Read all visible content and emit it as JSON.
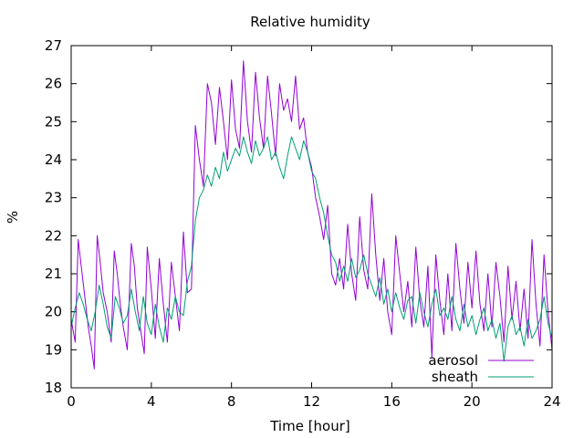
{
  "chart_data": {
    "type": "line",
    "title": "Relative humidity",
    "xlabel": "Time [hour]",
    "ylabel": "%",
    "xlim": [
      0,
      24
    ],
    "ylim": [
      18,
      27
    ],
    "xticks": [
      0,
      4,
      8,
      12,
      16,
      20,
      24
    ],
    "yticks": [
      18,
      19,
      20,
      21,
      22,
      23,
      24,
      25,
      26,
      27
    ],
    "grid": false,
    "legend": "bottom-right",
    "series": [
      {
        "name": "aerosol",
        "color": "#9400d3",
        "x": [
          0.0,
          0.2,
          0.35,
          0.5,
          0.7,
          0.85,
          1.0,
          1.15,
          1.3,
          1.45,
          1.6,
          1.8,
          2.0,
          2.15,
          2.3,
          2.45,
          2.6,
          2.8,
          3.0,
          3.15,
          3.3,
          3.5,
          3.65,
          3.8,
          4.0,
          4.2,
          4.4,
          4.6,
          4.8,
          5.0,
          5.2,
          5.4,
          5.6,
          5.8,
          6.0,
          6.2,
          6.4,
          6.6,
          6.8,
          7.0,
          7.2,
          7.4,
          7.6,
          7.8,
          8.0,
          8.2,
          8.4,
          8.6,
          8.8,
          9.0,
          9.2,
          9.4,
          9.6,
          9.8,
          10.0,
          10.2,
          10.4,
          10.6,
          10.8,
          11.0,
          11.2,
          11.4,
          11.6,
          11.8,
          12.0,
          12.2,
          12.4,
          12.6,
          12.8,
          13.0,
          13.2,
          13.4,
          13.6,
          13.8,
          14.0,
          14.2,
          14.4,
          14.6,
          14.8,
          15.0,
          15.2,
          15.4,
          15.6,
          15.8,
          16.0,
          16.2,
          16.4,
          16.6,
          16.8,
          17.0,
          17.2,
          17.4,
          17.6,
          17.8,
          18.0,
          18.2,
          18.4,
          18.6,
          18.8,
          19.0,
          19.2,
          19.4,
          19.6,
          19.8,
          20.0,
          20.2,
          20.4,
          20.6,
          20.8,
          21.0,
          21.2,
          21.4,
          21.6,
          21.8,
          22.0,
          22.2,
          22.4,
          22.6,
          22.8,
          23.0,
          23.2,
          23.4,
          23.6,
          23.8,
          24.0
        ],
        "y": [
          19.8,
          19.2,
          21.9,
          21.2,
          20.3,
          19.6,
          19.1,
          18.5,
          22.0,
          21.3,
          20.5,
          20.0,
          19.2,
          21.6,
          21.0,
          20.2,
          19.6,
          19.0,
          21.8,
          21.2,
          20.1,
          19.4,
          18.9,
          21.7,
          20.6,
          19.3,
          21.4,
          20.2,
          19.2,
          21.3,
          20.4,
          19.5,
          22.1,
          20.5,
          20.6,
          24.9,
          24.0,
          23.3,
          26.0,
          25.5,
          24.4,
          25.9,
          25.0,
          24.0,
          26.1,
          24.8,
          24.3,
          26.6,
          25.0,
          24.2,
          26.3,
          25.1,
          24.3,
          26.2,
          25.2,
          24.1,
          26.0,
          25.3,
          25.6,
          25.0,
          26.2,
          24.8,
          25.1,
          24.2,
          23.8,
          23.0,
          22.5,
          21.9,
          22.8,
          21.0,
          20.7,
          21.4,
          20.6,
          22.3,
          21.0,
          20.3,
          22.5,
          21.1,
          20.6,
          23.1,
          21.5,
          20.3,
          21.4,
          20.0,
          19.4,
          22.0,
          21.0,
          20.0,
          20.8,
          19.6,
          21.7,
          20.3,
          19.6,
          21.2,
          18.8,
          21.5,
          20.3,
          19.4,
          21.0,
          19.5,
          21.8,
          20.6,
          19.7,
          21.3,
          20.1,
          21.6,
          20.2,
          19.5,
          21.0,
          19.6,
          21.3,
          20.4,
          19.2,
          21.2,
          19.8,
          20.8,
          19.5,
          20.6,
          19.3,
          21.9,
          20.2,
          19.1,
          21.5,
          20.0,
          19.0
        ]
      },
      {
        "name": "sheath",
        "color": "#009e73",
        "x": [
          0.0,
          0.2,
          0.4,
          0.6,
          0.8,
          1.0,
          1.2,
          1.4,
          1.6,
          1.8,
          2.0,
          2.2,
          2.4,
          2.6,
          2.8,
          3.0,
          3.2,
          3.4,
          3.6,
          3.8,
          4.0,
          4.2,
          4.4,
          4.6,
          4.8,
          5.0,
          5.2,
          5.4,
          5.6,
          5.8,
          6.0,
          6.2,
          6.4,
          6.6,
          6.8,
          7.0,
          7.2,
          7.4,
          7.6,
          7.8,
          8.0,
          8.2,
          8.4,
          8.6,
          8.8,
          9.0,
          9.2,
          9.4,
          9.6,
          9.8,
          10.0,
          10.2,
          10.4,
          10.6,
          10.8,
          11.0,
          11.2,
          11.4,
          11.6,
          11.8,
          12.0,
          12.2,
          12.4,
          12.6,
          12.8,
          13.0,
          13.2,
          13.4,
          13.6,
          13.8,
          14.0,
          14.2,
          14.4,
          14.6,
          14.8,
          15.0,
          15.2,
          15.4,
          15.6,
          15.8,
          16.0,
          16.2,
          16.4,
          16.6,
          16.8,
          17.0,
          17.2,
          17.4,
          17.6,
          17.8,
          18.0,
          18.2,
          18.4,
          18.6,
          18.8,
          19.0,
          19.2,
          19.4,
          19.6,
          19.8,
          20.0,
          20.2,
          20.4,
          20.6,
          20.8,
          21.0,
          21.2,
          21.4,
          21.6,
          21.8,
          22.0,
          22.2,
          22.4,
          22.6,
          22.8,
          23.0,
          23.2,
          23.4,
          23.6,
          23.8,
          24.0
        ],
        "y": [
          19.6,
          20.1,
          20.5,
          20.2,
          19.8,
          19.5,
          20.0,
          20.7,
          20.2,
          19.6,
          19.3,
          20.4,
          20.1,
          19.7,
          19.9,
          20.6,
          20.0,
          19.5,
          20.4,
          19.7,
          19.4,
          20.2,
          19.6,
          19.2,
          20.1,
          19.8,
          20.4,
          20.0,
          19.9,
          20.8,
          21.2,
          22.4,
          23.0,
          23.2,
          23.6,
          23.3,
          23.8,
          23.5,
          24.2,
          23.7,
          24.0,
          24.3,
          24.1,
          24.6,
          24.2,
          23.9,
          24.5,
          24.1,
          24.3,
          24.6,
          24.0,
          24.2,
          23.8,
          23.5,
          24.1,
          24.6,
          24.3,
          24.0,
          24.5,
          24.2,
          23.7,
          23.5,
          23.0,
          22.6,
          22.0,
          21.5,
          21.3,
          20.8,
          21.2,
          20.8,
          21.4,
          20.9,
          21.1,
          21.5,
          21.0,
          20.7,
          20.4,
          20.9,
          20.2,
          20.6,
          20.0,
          20.5,
          20.1,
          19.8,
          20.3,
          20.4,
          19.7,
          20.5,
          20.0,
          19.6,
          20.2,
          20.6,
          19.9,
          20.1,
          19.8,
          20.4,
          19.8,
          19.5,
          20.2,
          19.6,
          19.9,
          19.4,
          19.8,
          20.1,
          19.5,
          19.8,
          19.3,
          19.7,
          18.7,
          19.6,
          19.9,
          19.4,
          19.6,
          19.1,
          19.8,
          19.3,
          19.5,
          19.8,
          20.4,
          19.7,
          19.3
        ]
      }
    ]
  }
}
